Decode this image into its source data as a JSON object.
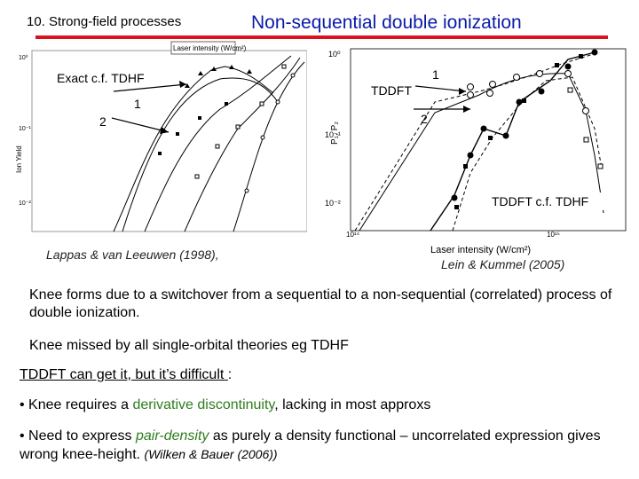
{
  "header": {
    "section": "10. Strong-field processes",
    "title": "Non-sequential double ionization",
    "rule_color": "#d9121b",
    "title_color": "#0a1aa8"
  },
  "left_plot": {
    "box_title": "Laser intensity (W/cm²)",
    "ylabel": "Ion Yield",
    "y_ticks": [
      "10⁰",
      "10⁻¹",
      "10⁻²"
    ],
    "annot_exact": "Exact c.f. TDHF",
    "annot_1": "1",
    "annot_2": "2",
    "caption": "Lappas & van Leeuwen (1998),"
  },
  "right_plot": {
    "ylabel": "P₁, P₂",
    "y_ticks": [
      "10⁰",
      "10⁻¹",
      "10⁻²"
    ],
    "x_ticks": [
      "10¹⁴",
      "10¹⁵"
    ],
    "xlabel": "Laser intensity (W/cm²)",
    "annot_tddft": "TDDFT",
    "annot_1": "1",
    "annot_2": "2",
    "annot_cf": "TDDFT c.f. TDHF",
    "caption": "Lein & Kummel (2005)"
  },
  "body": {
    "para1": "Knee forms  due to a switchover from a sequential to a non-sequential (correlated) process of double ionization.",
    "para2": "Knee missed by all single-orbital theories eg TDHF",
    "para3_underlined": "TDDFT can get it, but it’s difficult  ",
    "para3_tail": ":",
    "bullet1_pre": "• Knee requires a ",
    "bullet1_green": "derivative discontinuity",
    "bullet1_post": ", lacking in most approxs",
    "bullet2_pre": "• Need to express ",
    "bullet2_green": "pair-density",
    "bullet2_mid": " as purely a density functional – uncorrelated expression gives wrong knee-height. ",
    "bullet2_cite": "(Wilken & Bauer (2006))"
  }
}
